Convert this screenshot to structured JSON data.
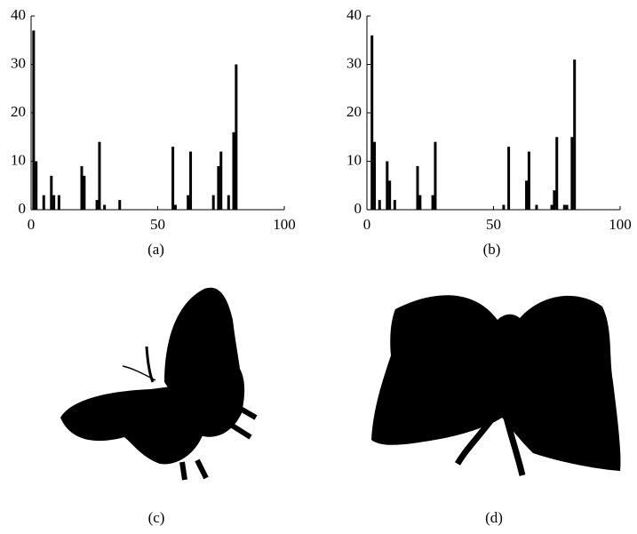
{
  "chart_data": [
    {
      "type": "bar",
      "caption": "(a)",
      "x": [
        1,
        2,
        5,
        8,
        9,
        11,
        20,
        21,
        26,
        27,
        29,
        35,
        56,
        57,
        62,
        63,
        72,
        74,
        75,
        78,
        80,
        81
      ],
      "values": [
        37,
        10,
        3,
        7,
        3,
        3,
        9,
        7,
        2,
        14,
        1,
        2,
        13,
        1,
        3,
        12,
        3,
        9,
        12,
        3,
        16,
        30
      ],
      "color": "#000000",
      "xlim": [
        0,
        100
      ],
      "xticks": [
        0,
        50,
        100
      ],
      "ylim": [
        0,
        40
      ],
      "yticks": [
        0,
        10,
        20,
        30,
        40
      ]
    },
    {
      "type": "bar",
      "caption": "(b)",
      "x": [
        2,
        3,
        5,
        8,
        9,
        11,
        20,
        21,
        26,
        27,
        54,
        56,
        63,
        64,
        67,
        73,
        74,
        75,
        78,
        79,
        81,
        82
      ],
      "values": [
        36,
        14,
        2,
        10,
        6,
        2,
        9,
        3,
        3,
        14,
        1,
        13,
        6,
        12,
        1,
        1,
        4,
        15,
        1,
        1,
        15,
        31
      ],
      "color": "#000000",
      "xlim": [
        0,
        100
      ],
      "xticks": [
        0,
        50,
        100
      ],
      "ylim": [
        0,
        40
      ],
      "yticks": [
        0,
        10,
        20,
        30,
        40
      ]
    }
  ],
  "figures": [
    {
      "caption": "(c)"
    },
    {
      "caption": "(d)"
    }
  ]
}
